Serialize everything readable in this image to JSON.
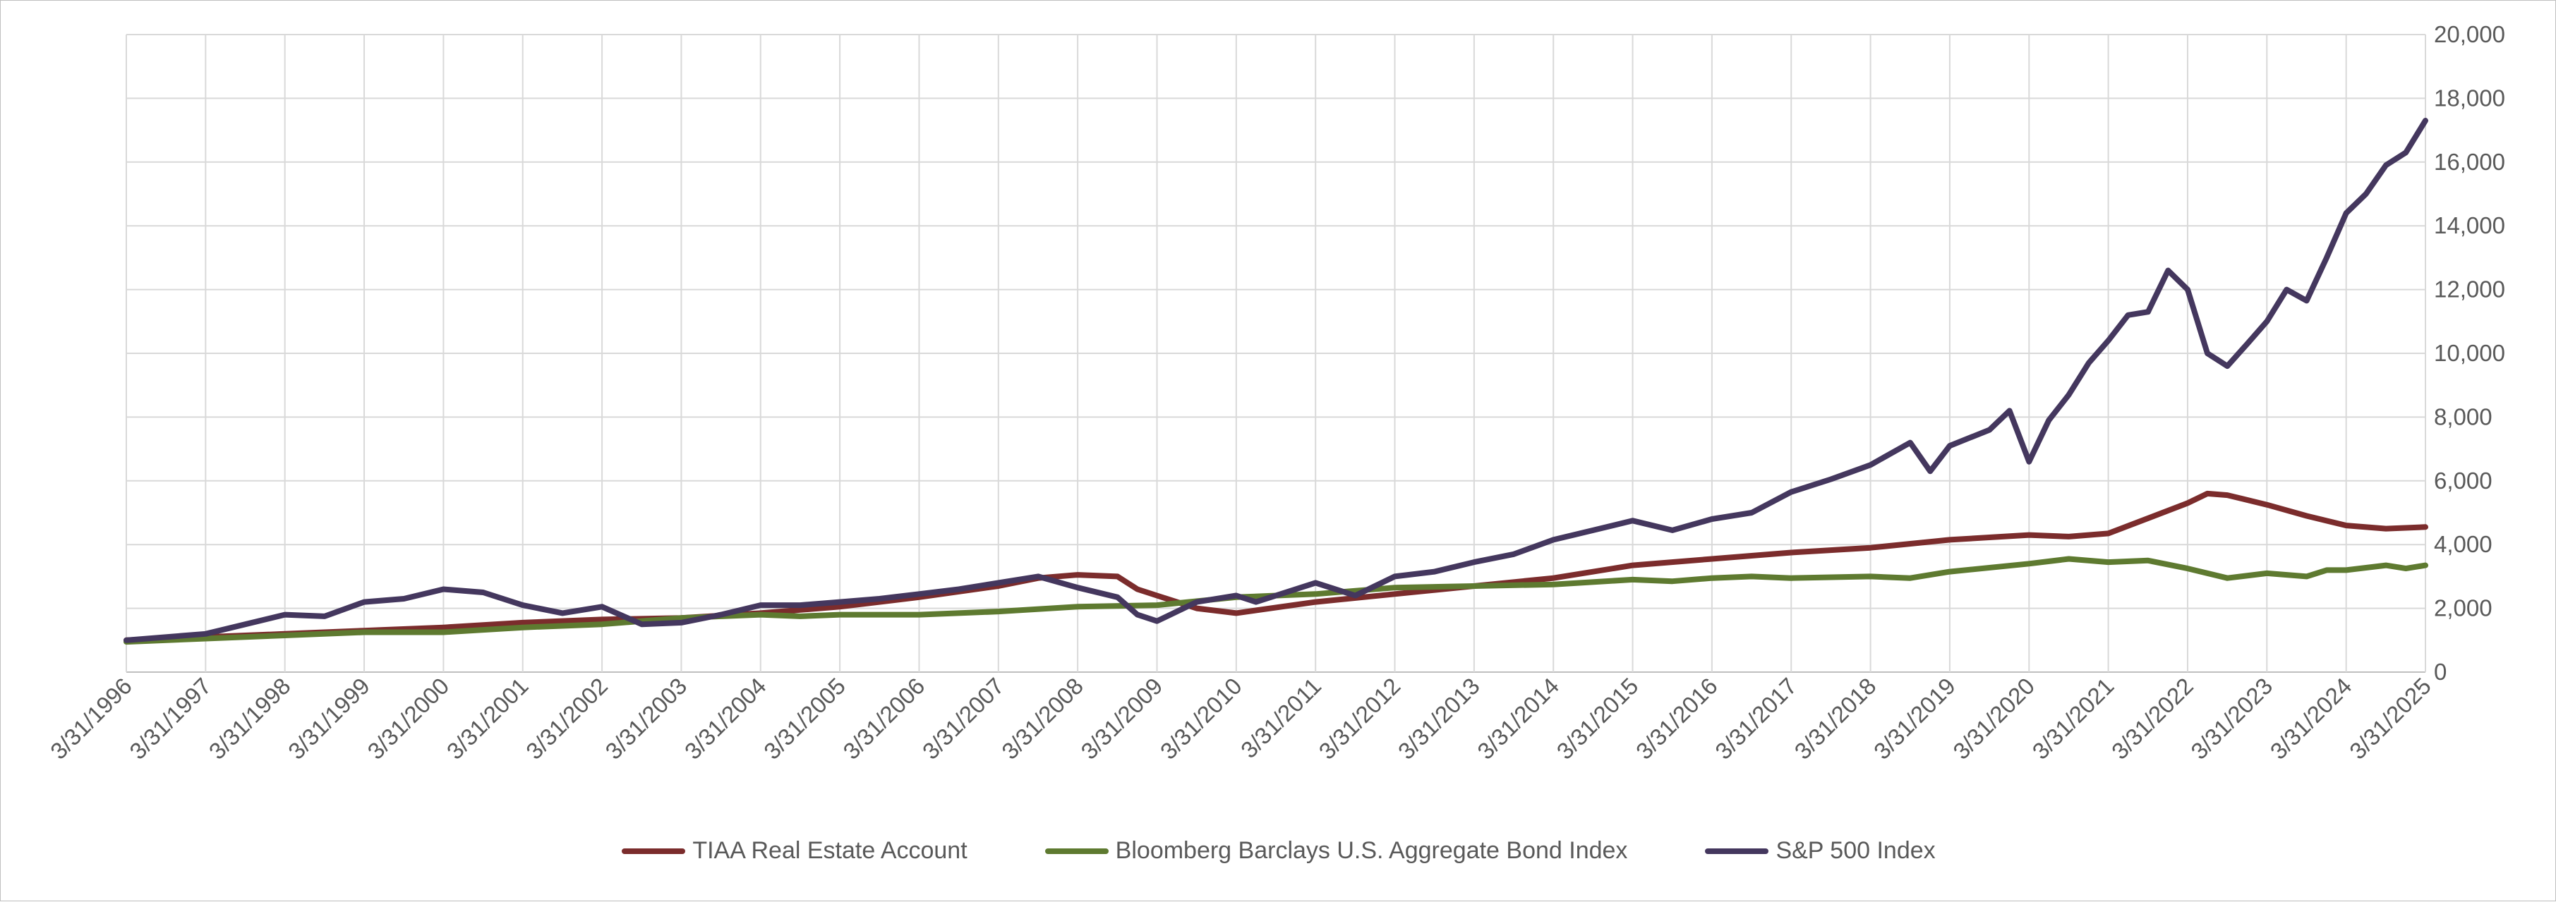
{
  "chart_data": {
    "type": "line",
    "title": "",
    "xlabel": "",
    "ylabel": "",
    "ylim": [
      0,
      20000
    ],
    "y_ticks": [
      0,
      2000,
      4000,
      6000,
      8000,
      10000,
      12000,
      14000,
      16000,
      18000,
      20000
    ],
    "y_tick_labels": [
      "0",
      "2,000",
      "4,000",
      "6,000",
      "8,000",
      "10,000",
      "12,000",
      "14,000",
      "16,000",
      "18,000",
      "20,000"
    ],
    "y_axis_position": "right",
    "x_tick_labels": [
      "3/31/1996",
      "3/31/1997",
      "3/31/1998",
      "3/31/1999",
      "3/31/2000",
      "3/31/2001",
      "3/31/2002",
      "3/31/2003",
      "3/31/2004",
      "3/31/2005",
      "3/31/2006",
      "3/31/2007",
      "3/31/2008",
      "3/31/2009",
      "3/31/2010",
      "3/31/2011",
      "3/31/2012",
      "3/31/2013",
      "3/31/2014",
      "3/31/2015",
      "3/31/2016",
      "3/31/2017",
      "3/31/2018",
      "3/31/2019",
      "3/31/2020",
      "3/31/2021",
      "3/31/2022",
      "3/31/2023",
      "3/31/2024",
      "3/31/2025"
    ],
    "x_range": [
      "3/31/1996",
      "3/31/2025"
    ],
    "grid": true,
    "legend_position": "bottom",
    "series": [
      {
        "name": "TIAA Real Estate Account",
        "color": "#7b2c2c",
        "points": [
          [
            "3/31/1996",
            1000
          ],
          [
            "3/31/1997",
            1100
          ],
          [
            "3/31/1998",
            1200
          ],
          [
            "3/31/1999",
            1300
          ],
          [
            "3/31/2000",
            1400
          ],
          [
            "3/31/2001",
            1550
          ],
          [
            "3/31/2002",
            1650
          ],
          [
            "3/31/2003",
            1700
          ],
          [
            "3/31/2004",
            1850
          ],
          [
            "3/31/2005",
            2050
          ],
          [
            "3/31/2006",
            2350
          ],
          [
            "3/31/2007",
            2700
          ],
          [
            "9/30/2007",
            2950
          ],
          [
            "3/31/2008",
            3050
          ],
          [
            "9/30/2008",
            3000
          ],
          [
            "12/31/2008",
            2600
          ],
          [
            "3/31/2009",
            2400
          ],
          [
            "9/30/2009",
            2000
          ],
          [
            "3/31/2010",
            1850
          ],
          [
            "3/31/2011",
            2200
          ],
          [
            "3/31/2012",
            2450
          ],
          [
            "3/31/2013",
            2700
          ],
          [
            "3/31/2014",
            2950
          ],
          [
            "3/31/2015",
            3350
          ],
          [
            "3/31/2016",
            3550
          ],
          [
            "3/31/2017",
            3750
          ],
          [
            "3/31/2018",
            3900
          ],
          [
            "3/31/2019",
            4150
          ],
          [
            "3/31/2020",
            4300
          ],
          [
            "9/30/2020",
            4250
          ],
          [
            "3/31/2021",
            4350
          ],
          [
            "3/31/2022",
            5300
          ],
          [
            "6/30/2022",
            5600
          ],
          [
            "9/30/2022",
            5550
          ],
          [
            "3/31/2023",
            5250
          ],
          [
            "9/30/2023",
            4900
          ],
          [
            "3/31/2024",
            4600
          ],
          [
            "9/30/2024",
            4500
          ],
          [
            "3/31/2025",
            4550
          ]
        ]
      },
      {
        "name": "Bloomberg Barclays U.S. Aggregate Bond Index",
        "color": "#5e7a30",
        "points": [
          [
            "3/31/1996",
            950
          ],
          [
            "3/31/1997",
            1050
          ],
          [
            "3/31/1998",
            1150
          ],
          [
            "3/31/1999",
            1250
          ],
          [
            "3/31/2000",
            1250
          ],
          [
            "3/31/2001",
            1400
          ],
          [
            "3/31/2002",
            1500
          ],
          [
            "3/31/2003",
            1700
          ],
          [
            "3/31/2004",
            1800
          ],
          [
            "9/30/2004",
            1750
          ],
          [
            "3/31/2005",
            1800
          ],
          [
            "3/31/2006",
            1800
          ],
          [
            "3/31/2007",
            1900
          ],
          [
            "3/31/2008",
            2050
          ],
          [
            "3/31/2009",
            2100
          ],
          [
            "3/31/2010",
            2350
          ],
          [
            "3/31/2011",
            2450
          ],
          [
            "3/31/2012",
            2650
          ],
          [
            "3/31/2013",
            2700
          ],
          [
            "3/31/2014",
            2750
          ],
          [
            "3/31/2015",
            2900
          ],
          [
            "9/30/2015",
            2850
          ],
          [
            "3/31/2016",
            2950
          ],
          [
            "9/30/2016",
            3000
          ],
          [
            "3/31/2017",
            2950
          ],
          [
            "3/31/2018",
            3000
          ],
          [
            "9/30/2018",
            2950
          ],
          [
            "3/31/2019",
            3150
          ],
          [
            "3/31/2020",
            3400
          ],
          [
            "9/30/2020",
            3550
          ],
          [
            "3/31/2021",
            3450
          ],
          [
            "9/30/2021",
            3500
          ],
          [
            "3/31/2022",
            3250
          ],
          [
            "9/30/2022",
            2950
          ],
          [
            "3/31/2023",
            3100
          ],
          [
            "9/30/2023",
            3000
          ],
          [
            "12/31/2023",
            3200
          ],
          [
            "3/31/2024",
            3200
          ],
          [
            "9/30/2024",
            3350
          ],
          [
            "12/31/2024",
            3250
          ],
          [
            "3/31/2025",
            3350
          ]
        ]
      },
      {
        "name": "S&P 500 Index",
        "color": "#44375e",
        "points": [
          [
            "3/31/1996",
            1000
          ],
          [
            "3/31/1997",
            1200
          ],
          [
            "9/30/1997",
            1500
          ],
          [
            "3/31/1998",
            1800
          ],
          [
            "9/30/1998",
            1750
          ],
          [
            "3/31/1999",
            2200
          ],
          [
            "9/30/1999",
            2300
          ],
          [
            "3/31/2000",
            2600
          ],
          [
            "9/30/2000",
            2500
          ],
          [
            "3/31/2001",
            2100
          ],
          [
            "9/30/2001",
            1850
          ],
          [
            "3/31/2002",
            2050
          ],
          [
            "9/30/2002",
            1500
          ],
          [
            "3/31/2003",
            1550
          ],
          [
            "9/30/2003",
            1800
          ],
          [
            "3/31/2004",
            2100
          ],
          [
            "9/30/2004",
            2100
          ],
          [
            "3/31/2005",
            2200
          ],
          [
            "9/30/2005",
            2300
          ],
          [
            "3/31/2006",
            2450
          ],
          [
            "9/30/2006",
            2600
          ],
          [
            "3/31/2007",
            2800
          ],
          [
            "9/30/2007",
            3000
          ],
          [
            "3/31/2008",
            2650
          ],
          [
            "9/30/2008",
            2350
          ],
          [
            "12/31/2008",
            1800
          ],
          [
            "3/31/2009",
            1600
          ],
          [
            "9/30/2009",
            2200
          ],
          [
            "3/31/2010",
            2400
          ],
          [
            "6/30/2010",
            2200
          ],
          [
            "3/31/2011",
            2800
          ],
          [
            "9/30/2011",
            2400
          ],
          [
            "3/31/2012",
            3000
          ],
          [
            "9/30/2012",
            3150
          ],
          [
            "3/31/2013",
            3450
          ],
          [
            "9/30/2013",
            3700
          ],
          [
            "3/31/2014",
            4150
          ],
          [
            "9/30/2014",
            4450
          ],
          [
            "3/31/2015",
            4750
          ],
          [
            "9/30/2015",
            4450
          ],
          [
            "3/31/2016",
            4800
          ],
          [
            "9/30/2016",
            5000
          ],
          [
            "3/31/2017",
            5650
          ],
          [
            "9/30/2017",
            6050
          ],
          [
            "3/31/2018",
            6500
          ],
          [
            "9/30/2018",
            7200
          ],
          [
            "12/31/2018",
            6300
          ],
          [
            "3/31/2019",
            7100
          ],
          [
            "9/30/2019",
            7600
          ],
          [
            "12/31/2019",
            8200
          ],
          [
            "3/31/2020",
            6600
          ],
          [
            "6/30/2020",
            7900
          ],
          [
            "9/30/2020",
            8700
          ],
          [
            "12/31/2020",
            9700
          ],
          [
            "3/31/2021",
            10400
          ],
          [
            "6/30/2021",
            11200
          ],
          [
            "9/30/2021",
            11300
          ],
          [
            "12/31/2021",
            12600
          ],
          [
            "3/31/2022",
            12000
          ],
          [
            "6/30/2022",
            10000
          ],
          [
            "9/30/2022",
            9600
          ],
          [
            "12/31/2022",
            10300
          ],
          [
            "3/31/2023",
            11000
          ],
          [
            "6/30/2023",
            12000
          ],
          [
            "9/30/2023",
            11650
          ],
          [
            "12/31/2023",
            13000
          ],
          [
            "3/31/2024",
            14400
          ],
          [
            "6/30/2024",
            15000
          ],
          [
            "9/30/2024",
            15900
          ],
          [
            "12/31/2024",
            16300
          ],
          [
            "3/31/2025",
            17300
          ]
        ]
      }
    ]
  }
}
